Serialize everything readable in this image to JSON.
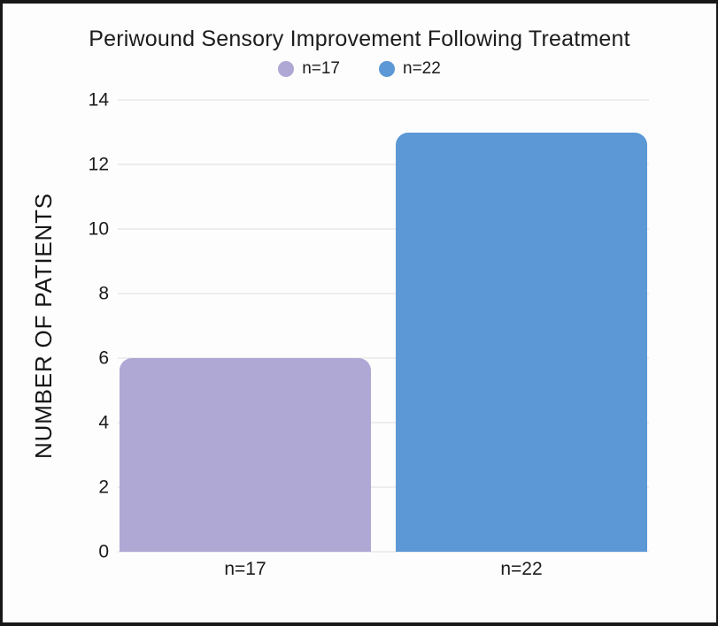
{
  "title": "Periwound Sensory Improvement Following Treatment",
  "legend": [
    {
      "label": "n=17",
      "color": "#afa7d4"
    },
    {
      "label": "n=22",
      "color": "#5b98d5"
    }
  ],
  "chart_data": {
    "type": "bar",
    "title": "Periwound Sensory Improvement Following Treatment",
    "categories": [
      "n=17",
      "n=22"
    ],
    "values": [
      6,
      13
    ],
    "series_colors": [
      "#afa7d4",
      "#5b98d5"
    ],
    "xlabel": "",
    "ylabel": "NUMBER OF PATIENTS",
    "ylim": [
      0,
      14
    ],
    "yticks": [
      0,
      2,
      4,
      6,
      8,
      10,
      12,
      14
    ],
    "grid": true,
    "gridline_color": "#ededed",
    "legend_position": "top",
    "bar_corner_style": "rounded-top"
  }
}
